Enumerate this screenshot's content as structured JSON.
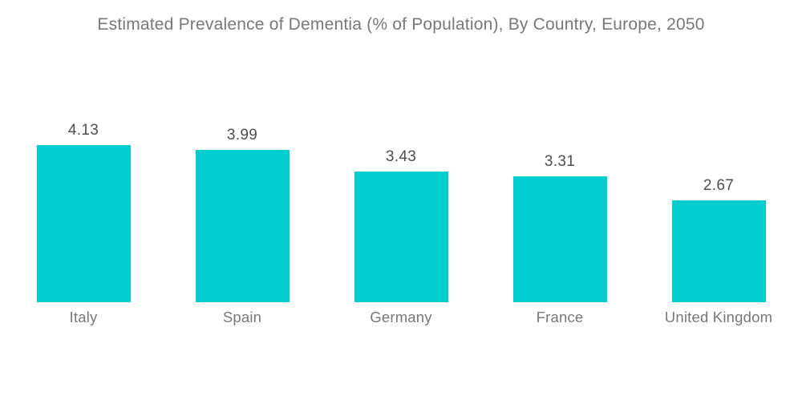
{
  "title": "Estimated Prevalence of Dementia (% of Population), By Country, Europe, 2050",
  "chart_data": {
    "type": "bar",
    "title": "Estimated Prevalence of Dementia (% of Population), By Country, Europe, 2050",
    "categories": [
      "Italy",
      "Spain",
      "Germany",
      "France",
      "United Kingdom"
    ],
    "values": [
      4.13,
      3.99,
      3.43,
      3.31,
      2.67
    ],
    "value_labels": [
      "4.13",
      "3.99",
      "3.43",
      "3.31",
      "2.67"
    ],
    "xlabel": "",
    "ylabel": "",
    "ylim": [
      0,
      4.6
    ],
    "grid": false,
    "legend": false,
    "axes_visible": false,
    "bar_color": "#02CDD1",
    "value_label_color": "#4D4E50",
    "category_label_color": "#77787B",
    "title_color": "#77787B",
    "background_color": "#FFFFFF"
  }
}
